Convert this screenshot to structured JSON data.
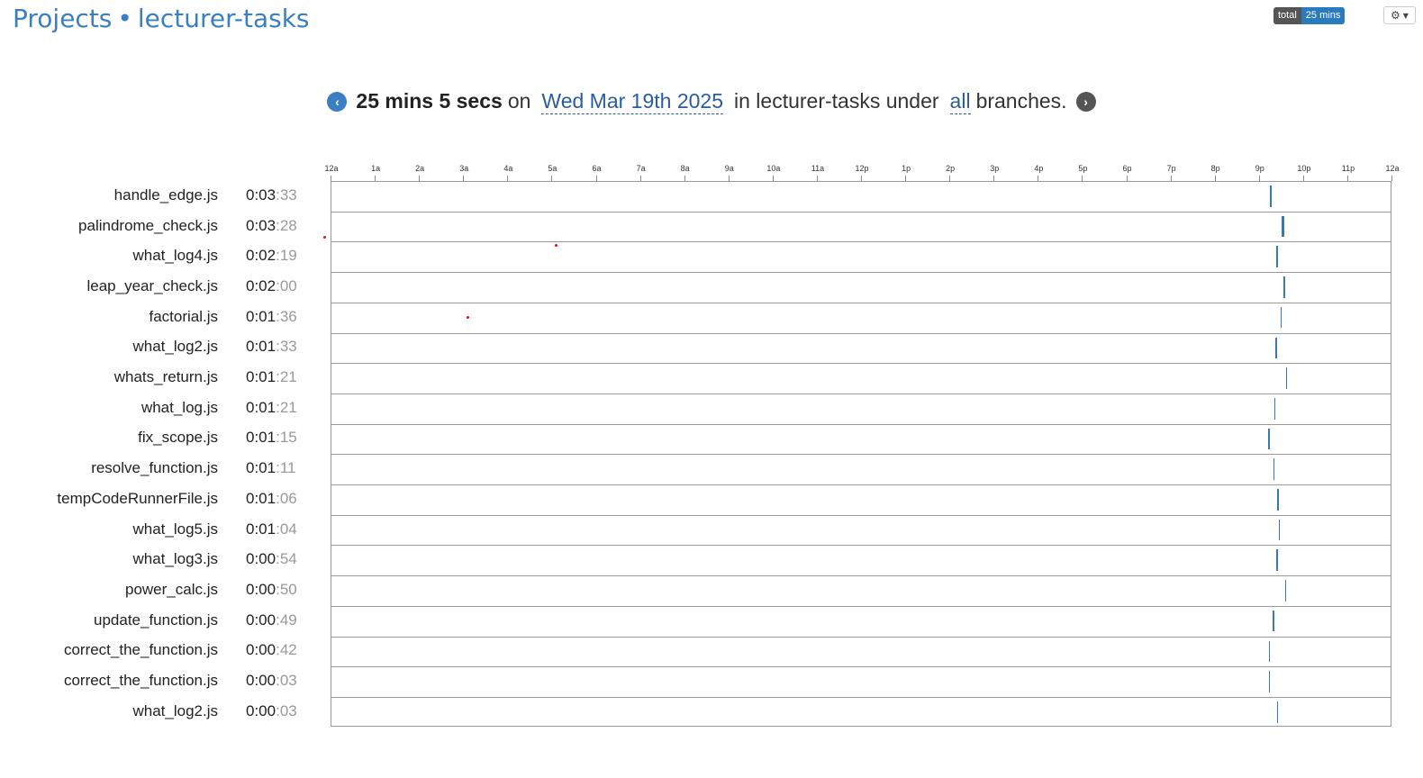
{
  "header": {
    "projects_link": "Projects",
    "separator": "•",
    "project_name": "lecturer-tasks"
  },
  "badge": {
    "label": "total",
    "value": "25 mins"
  },
  "summary": {
    "duration": "25 mins 5 secs",
    "on": "on",
    "date": "Wed Mar 19th 2025",
    "in_text": "in lecturer-tasks under",
    "branches_link": "all",
    "branches_text": "branches."
  },
  "icons": {
    "prev": "chevron-left-circle-icon",
    "next": "chevron-right-circle-icon",
    "settings": "gear-icon"
  },
  "colors": {
    "accent": "#3a7fc1",
    "bar": "#3a78b5",
    "badge_value_bg": "#2a7bbd",
    "dot": "#e01010"
  },
  "axis_labels": [
    "12a",
    "1a",
    "2a",
    "3a",
    "4a",
    "5a",
    "6a",
    "7a",
    "8a",
    "9a",
    "10a",
    "11a",
    "12p",
    "1p",
    "2p",
    "3p",
    "4p",
    "5p",
    "6p",
    "7p",
    "8p",
    "9p",
    "10p",
    "11p",
    "12a"
  ],
  "chart_data": {
    "type": "timeline",
    "x_unit": "hour of day",
    "xlim": [
      0,
      24
    ],
    "rows": [
      {
        "file": "handle_edge.js",
        "hm": "0:03",
        "sec": ":33",
        "start": 21.25,
        "end": 21.3
      },
      {
        "file": "palindrome_check.js",
        "hm": "0:03",
        "sec": ":28",
        "start": 21.52,
        "end": 21.57
      },
      {
        "file": "what_log4.js",
        "hm": "0:02",
        "sec": ":19",
        "start": 21.4,
        "end": 21.44
      },
      {
        "file": "leap_year_check.js",
        "hm": "0:02",
        "sec": ":00",
        "start": 21.56,
        "end": 21.59
      },
      {
        "file": "factorial.js",
        "hm": "0:01",
        "sec": ":36",
        "start": 21.49,
        "end": 21.52
      },
      {
        "file": "what_log2.js",
        "hm": "0:01",
        "sec": ":33",
        "start": 21.38,
        "end": 21.41
      },
      {
        "file": "whats_return.js",
        "hm": "0:01",
        "sec": ":21",
        "start": 21.61,
        "end": 21.63
      },
      {
        "file": "what_log.js",
        "hm": "0:01",
        "sec": ":21",
        "start": 21.35,
        "end": 21.38
      },
      {
        "file": "fix_scope.js",
        "hm": "0:01",
        "sec": ":15",
        "start": 21.21,
        "end": 21.23
      },
      {
        "file": "resolve_function.js",
        "hm": "0:01",
        "sec": ":11",
        "start": 21.33,
        "end": 21.35
      },
      {
        "file": "tempCodeRunnerFile.js",
        "hm": "0:01",
        "sec": ":06",
        "start": 21.42,
        "end": 21.44
      },
      {
        "file": "what_log5.js",
        "hm": "0:01",
        "sec": ":04",
        "start": 21.45,
        "end": 21.47
      },
      {
        "file": "what_log3.js",
        "hm": "0:00",
        "sec": ":54",
        "start": 21.4,
        "end": 21.42
      },
      {
        "file": "power_calc.js",
        "hm": "0:00",
        "sec": ":50",
        "start": 21.59,
        "end": 21.61
      },
      {
        "file": "update_function.js",
        "hm": "0:00",
        "sec": ":49",
        "start": 21.32,
        "end": 21.34
      },
      {
        "file": "correct_the_function.js",
        "hm": "0:00",
        "sec": ":42",
        "start": 21.22,
        "end": 21.24
      },
      {
        "file": "correct_the_function.js",
        "hm": "0:00",
        "sec": ":03",
        "start": 21.22,
        "end": 21.225
      },
      {
        "file": "what_log2.js",
        "hm": "0:00",
        "sec": ":03",
        "start": 21.41,
        "end": 21.415
      }
    ]
  }
}
